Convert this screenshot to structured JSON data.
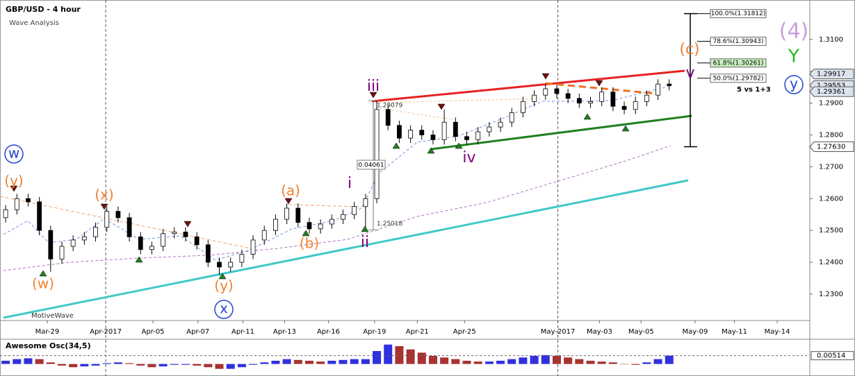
{
  "chart_data": [
    {
      "type": "candlestick",
      "title": "GBP/USD - 4 hour",
      "subtitle": "Wave Analysis",
      "watermark": "MotiveWave",
      "open": [
        1.254,
        1.2565,
        1.26,
        1.259,
        1.25,
        1.241,
        1.245,
        1.247,
        1.248,
        1.251,
        1.256,
        1.254,
        1.248,
        1.244,
        1.245,
        1.249,
        1.2495,
        1.248,
        1.2455,
        1.24,
        1.2385,
        1.24,
        1.2425,
        1.247,
        1.25,
        1.2535,
        1.257,
        1.2525,
        1.2505,
        1.252,
        1.2535,
        1.255,
        1.2575,
        1.26,
        1.288,
        1.283,
        1.279,
        1.2815,
        1.28,
        1.2785,
        1.284,
        1.2795,
        1.2785,
        1.281,
        1.2825,
        1.284,
        1.287,
        1.2905,
        1.2925,
        1.2945,
        1.293,
        1.2915,
        1.29,
        1.2905,
        1.2935,
        1.289,
        1.288,
        1.2905,
        1.2925,
        1.296
      ],
      "high": [
        1.258,
        1.2615,
        1.2615,
        1.2605,
        1.2515,
        1.2465,
        1.2485,
        1.2495,
        1.2525,
        1.2575,
        1.2575,
        1.2555,
        1.2495,
        1.2465,
        1.2505,
        1.251,
        1.251,
        1.2495,
        1.247,
        1.2415,
        1.2415,
        1.244,
        1.2485,
        1.2515,
        1.255,
        1.2585,
        1.2585,
        1.254,
        1.2535,
        1.255,
        1.2565,
        1.259,
        1.2615,
        1.2908,
        1.2895,
        1.2845,
        1.283,
        1.283,
        1.2815,
        1.288,
        1.2855,
        1.281,
        1.2825,
        1.284,
        1.2855,
        1.2885,
        1.292,
        1.294,
        1.296,
        1.2958,
        1.2945,
        1.293,
        1.292,
        1.295,
        1.295,
        1.2905,
        1.292,
        1.294,
        1.2975,
        1.2975
      ],
      "low": [
        1.2525,
        1.255,
        1.2575,
        1.2485,
        1.237,
        1.2395,
        1.2435,
        1.2455,
        1.2465,
        1.2495,
        1.2525,
        1.2465,
        1.2425,
        1.2425,
        1.2435,
        1.2475,
        1.2465,
        1.244,
        1.2385,
        1.236,
        1.237,
        1.2385,
        1.241,
        1.2455,
        1.2485,
        1.252,
        1.251,
        1.249,
        1.249,
        1.2505,
        1.252,
        1.2535,
        1.2502,
        1.2585,
        1.2815,
        1.2775,
        1.2775,
        1.2785,
        1.277,
        1.277,
        1.278,
        1.277,
        1.277,
        1.2795,
        1.281,
        1.2825,
        1.2855,
        1.289,
        1.291,
        1.2915,
        1.29,
        1.2885,
        1.2885,
        1.289,
        1.2875,
        1.2865,
        1.2865,
        1.289,
        1.291,
        1.294
      ],
      "close": [
        1.2565,
        1.26,
        1.259,
        1.25,
        1.241,
        1.245,
        1.247,
        1.248,
        1.251,
        1.256,
        1.254,
        1.248,
        1.244,
        1.245,
        1.249,
        1.2495,
        1.248,
        1.2455,
        1.24,
        1.2385,
        1.24,
        1.2425,
        1.247,
        1.25,
        1.2535,
        1.257,
        1.2525,
        1.2505,
        1.252,
        1.2535,
        1.255,
        1.2575,
        1.26,
        1.288,
        1.283,
        1.279,
        1.2815,
        1.28,
        1.2785,
        1.284,
        1.2795,
        1.2785,
        1.281,
        1.2825,
        1.284,
        1.287,
        1.2905,
        1.2925,
        1.2945,
        1.293,
        1.2915,
        1.29,
        1.2905,
        1.2935,
        1.289,
        1.288,
        1.2905,
        1.2925,
        1.296,
        1.2955
      ],
      "up_color": "#ffffff",
      "down_color": "#000000",
      "xlim": [
        0,
        72
      ],
      "xticks": [
        {
          "value": 4.2,
          "label": "Mar-29"
        },
        {
          "value": 9.4,
          "label": "Apr-2017"
        },
        {
          "value": 13.6,
          "label": "Apr-05"
        },
        {
          "value": 17.6,
          "label": "Apr-07"
        },
        {
          "value": 21.6,
          "label": "Apr-11"
        },
        {
          "value": 25.3,
          "label": "Apr-13"
        },
        {
          "value": 29.2,
          "label": "Apr-16"
        },
        {
          "value": 33.3,
          "label": "Apr-19"
        },
        {
          "value": 37.1,
          "label": "Apr-21"
        },
        {
          "value": 41.3,
          "label": "Apr-25"
        },
        {
          "value": 49.6,
          "label": "May-2017"
        },
        {
          "value": 53.3,
          "label": "May-03"
        },
        {
          "value": 57,
          "label": "May-05"
        },
        {
          "value": 61.8,
          "label": "May-09"
        },
        {
          "value": 65.3,
          "label": "May-11"
        },
        {
          "value": 69.1,
          "label": "May-14"
        }
      ],
      "ylim": [
        1.2217,
        1.3224
      ],
      "yticks": [
        {
          "value": 1.23,
          "label": "1.2300"
        },
        {
          "value": 1.24,
          "label": "1.2400"
        },
        {
          "value": 1.25,
          "label": "1.2500"
        },
        {
          "value": 1.26,
          "label": "1.2600"
        },
        {
          "value": 1.27,
          "label": "1.2700"
        },
        {
          "value": 1.28,
          "label": "1.2800"
        },
        {
          "value": 1.29,
          "label": "1.2900"
        },
        {
          "value": 1.3,
          "label": "1.3000"
        },
        {
          "value": 1.31,
          "label": "1.3100"
        }
      ],
      "price_markers": [
        {
          "value": 1.29917,
          "label": "1.29917"
        },
        {
          "value": 1.29553,
          "label": "1.29553"
        },
        {
          "value": 1.29361,
          "label": "1.29361"
        },
        {
          "value": 1.2763,
          "label": "1.27630"
        }
      ],
      "fib_levels": [
        {
          "value": 1.31812,
          "label": "100.0%(1.31812)"
        },
        {
          "value": 1.30943,
          "label": "78.6%(1.30943)"
        },
        {
          "value": 1.30261,
          "label": "61.8%(1.30261)"
        },
        {
          "value": 1.29782,
          "label": "50.0%(1.29782)"
        }
      ],
      "price_notes": [
        {
          "value": 1.29079,
          "label": "1.29079"
        },
        {
          "value": 1.25018,
          "label": "1.25018"
        }
      ],
      "range_label": {
        "value": 0.04061,
        "label": "0.04061"
      },
      "note": "5 vs 1+3",
      "wave_labels": [
        {
          "text": "(4)",
          "color": "#c9a0dc"
        },
        {
          "text": "Y",
          "color": "#22bb22"
        },
        {
          "text": "y",
          "color": "#2244cc"
        },
        {
          "text": "(c)",
          "color": "#f08030"
        },
        {
          "text": "v",
          "color": "#800080"
        },
        {
          "text": "iii",
          "color": "#800080"
        },
        {
          "text": "iv",
          "color": "#800080"
        },
        {
          "text": "ii",
          "color": "#800080"
        },
        {
          "text": "i",
          "color": "#800080"
        },
        {
          "text": "(a)",
          "color": "#f08030"
        },
        {
          "text": "(b)",
          "color": "#f08030"
        },
        {
          "text": "(x)",
          "color": "#f08030"
        },
        {
          "text": "(y)",
          "color": "#f08030"
        },
        {
          "text": "(w)",
          "color": "#f08030"
        },
        {
          "text": "(y)",
          "color": "#f08030"
        },
        {
          "text": "w",
          "color": "#2244cc"
        },
        {
          "text": "x",
          "color": "#2244cc"
        }
      ]
    },
    {
      "type": "bar",
      "title": "Awesome Osc(34,5)",
      "values": [
        0.002,
        0.003,
        0.0035,
        0.003,
        0.001,
        -0.001,
        -0.002,
        -0.0015,
        -0.001,
        0.0005,
        0.001,
        0.0005,
        -0.001,
        -0.002,
        -0.0015,
        -0.0005,
        -0.0005,
        -0.001,
        -0.002,
        -0.003,
        -0.003,
        -0.002,
        -0.0005,
        0.001,
        0.002,
        0.003,
        0.0025,
        0.002,
        0.0015,
        0.002,
        0.0025,
        0.003,
        0.003,
        0.008,
        0.012,
        0.011,
        0.009,
        0.007,
        0.005,
        0.004,
        0.003,
        0.002,
        0.0015,
        0.0015,
        0.002,
        0.003,
        0.004,
        0.005,
        0.0055,
        0.005,
        0.004,
        0.003,
        0.002,
        0.0015,
        0.001,
        0,
        -0.0005,
        0.001,
        0.003,
        0.00514
      ],
      "up_color": "#3030e0",
      "down_color": "#a83232",
      "ylim": [
        -0.004,
        0.014
      ],
      "last_value": {
        "value": 0.00514,
        "label": "0.00514"
      }
    }
  ]
}
